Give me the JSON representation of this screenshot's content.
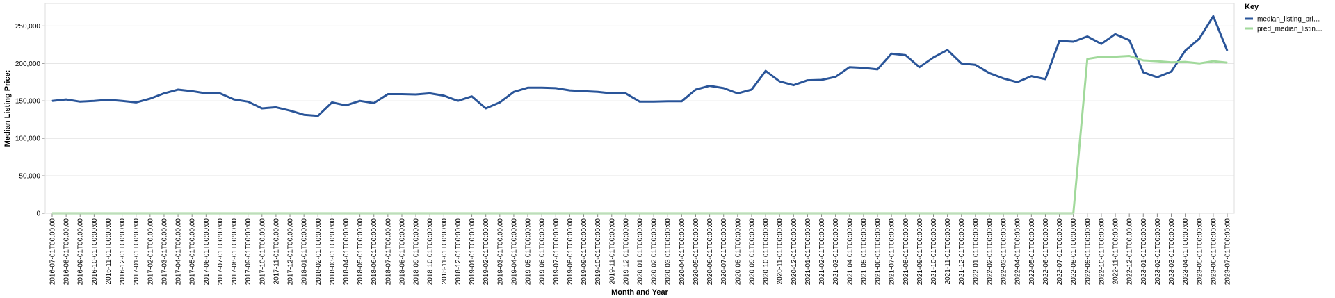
{
  "chart_data": {
    "type": "line",
    "xlabel": "Month and Year",
    "ylabel": "Median Listing Price:",
    "ylim": [
      0,
      280000
    ],
    "yticks": [
      0,
      50000,
      100000,
      150000,
      200000,
      250000
    ],
    "ytick_labels": [
      "0",
      "50,000",
      "100,000",
      "150,000",
      "200,000",
      "250,000"
    ],
    "grid": true,
    "legend_title": "Key",
    "legend_position": "top-right",
    "categories": [
      "2016-07-01T00:00:00",
      "2016-08-01T00:00:00",
      "2016-09-01T00:00:00",
      "2016-10-01T00:00:00",
      "2016-11-01T00:00:00",
      "2016-12-01T00:00:00",
      "2017-01-01T00:00:00",
      "2017-02-01T00:00:00",
      "2017-03-01T00:00:00",
      "2017-04-01T00:00:00",
      "2017-05-01T00:00:00",
      "2017-06-01T00:00:00",
      "2017-07-01T00:00:00",
      "2017-08-01T00:00:00",
      "2017-09-01T00:00:00",
      "2017-10-01T00:00:00",
      "2017-11-01T00:00:00",
      "2017-12-01T00:00:00",
      "2018-01-01T00:00:00",
      "2018-02-01T00:00:00",
      "2018-03-01T00:00:00",
      "2018-04-01T00:00:00",
      "2018-05-01T00:00:00",
      "2018-06-01T00:00:00",
      "2018-07-01T00:00:00",
      "2018-08-01T00:00:00",
      "2018-09-01T00:00:00",
      "2018-10-01T00:00:00",
      "2018-11-01T00:00:00",
      "2018-12-01T00:00:00",
      "2019-01-01T00:00:00",
      "2019-02-01T00:00:00",
      "2019-03-01T00:00:00",
      "2019-04-01T00:00:00",
      "2019-05-01T00:00:00",
      "2019-06-01T00:00:00",
      "2019-07-01T00:00:00",
      "2019-08-01T00:00:00",
      "2019-09-01T00:00:00",
      "2019-10-01T00:00:00",
      "2019-11-01T00:00:00",
      "2019-12-01T00:00:00",
      "2020-01-01T00:00:00",
      "2020-02-01T00:00:00",
      "2020-03-01T00:00:00",
      "2020-04-01T00:00:00",
      "2020-05-01T00:00:00",
      "2020-06-01T00:00:00",
      "2020-07-01T00:00:00",
      "2020-08-01T00:00:00",
      "2020-09-01T00:00:00",
      "2020-10-01T00:00:00",
      "2020-11-01T00:00:00",
      "2020-12-01T00:00:00",
      "2021-01-01T00:00:00",
      "2021-02-01T00:00:00",
      "2021-03-01T00:00:00",
      "2021-04-01T00:00:00",
      "2021-05-01T00:00:00",
      "2021-06-01T00:00:00",
      "2021-07-01T00:00:00",
      "2021-08-01T00:00:00",
      "2021-09-01T00:00:00",
      "2021-10-01T00:00:00",
      "2021-11-01T00:00:00",
      "2021-12-01T00:00:00",
      "2022-01-01T00:00:00",
      "2022-02-01T00:00:00",
      "2022-03-01T00:00:00",
      "2022-04-01T00:00:00",
      "2022-05-01T00:00:00",
      "2022-06-01T00:00:00",
      "2022-07-01T00:00:00",
      "2022-08-01T00:00:00",
      "2022-09-01T00:00:00",
      "2022-10-01T00:00:00",
      "2022-11-01T00:00:00",
      "2022-12-01T00:00:00",
      "2023-01-01T00:00:00",
      "2023-02-01T00:00:00",
      "2023-03-01T00:00:00",
      "2023-04-01T00:00:00",
      "2023-05-01T00:00:00",
      "2023-06-01T00:00:00",
      "2023-07-01T00:00:00"
    ],
    "series": [
      {
        "name": "median_listing_pri…",
        "color": "#2a5599",
        "values": [
          150000,
          152000,
          149000,
          150000,
          151500,
          150000,
          148000,
          153000,
          160000,
          165000,
          163000,
          160000,
          160000,
          152000,
          149000,
          140000,
          141500,
          137000,
          131500,
          130000,
          148000,
          144000,
          150000,
          147000,
          159000,
          159000,
          158500,
          160000,
          157000,
          150000,
          156000,
          140000,
          148000,
          162000,
          167500,
          167500,
          167000,
          164000,
          163000,
          162000,
          160000,
          160000,
          149000,
          149000,
          149500,
          149500,
          165000,
          170000,
          167000,
          160000,
          165000,
          190000,
          176000,
          171000,
          177500,
          178000,
          182000,
          195000,
          194000,
          192000,
          213000,
          211000,
          195000,
          208000,
          218000,
          200000,
          198000,
          187000,
          180000,
          175000,
          183000,
          179000,
          230000,
          229000,
          236000,
          226000,
          239000,
          231000,
          188000,
          181500,
          189000,
          217000,
          233000,
          263000,
          217000
        ]
      },
      {
        "name": "pred_median_listin…",
        "color": "#a1d99b",
        "values": [
          0,
          0,
          0,
          0,
          0,
          0,
          0,
          0,
          0,
          0,
          0,
          0,
          0,
          0,
          0,
          0,
          0,
          0,
          0,
          0,
          0,
          0,
          0,
          0,
          0,
          0,
          0,
          0,
          0,
          0,
          0,
          0,
          0,
          0,
          0,
          0,
          0,
          0,
          0,
          0,
          0,
          0,
          0,
          0,
          0,
          0,
          0,
          0,
          0,
          0,
          0,
          0,
          0,
          0,
          0,
          0,
          0,
          0,
          0,
          0,
          0,
          0,
          0,
          0,
          0,
          0,
          0,
          0,
          0,
          0,
          0,
          0,
          0,
          0,
          206000,
          209000,
          209000,
          210000,
          204000,
          203000,
          201500,
          202000,
          200000,
          203000,
          201000
        ]
      }
    ]
  }
}
